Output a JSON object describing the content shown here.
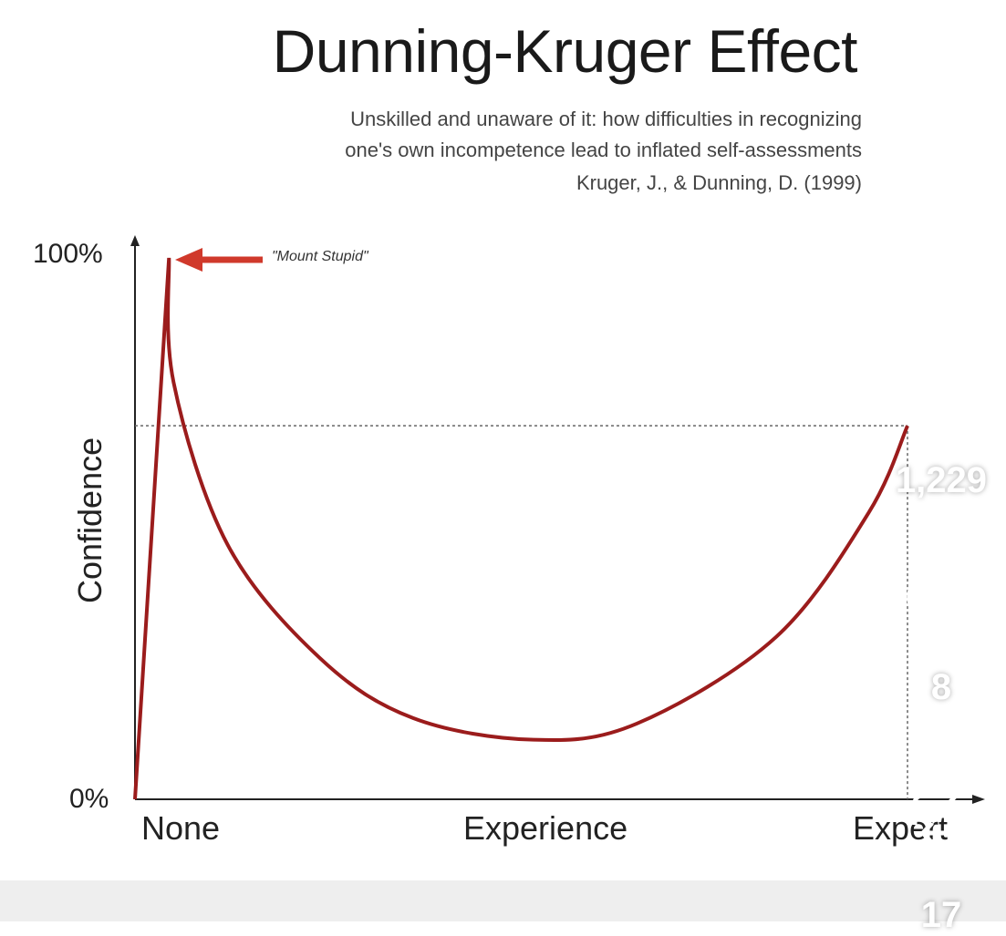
{
  "chart_data": {
    "type": "line",
    "title": "Dunning-Kruger Effect",
    "subtitle": [
      "Unskilled and unaware of it: how difficulties in recognizing",
      "one's own incompetence lead to inflated self-assessments",
      "Kruger, J., & Dunning, D. (1999)"
    ],
    "xlabel": "Experience",
    "ylabel": "Confidence",
    "x_ticks": [
      "None",
      "Expert"
    ],
    "y_ticks": [
      "0%",
      "100%"
    ],
    "xlim": [
      0,
      1
    ],
    "ylim": [
      0,
      1
    ],
    "series": [
      {
        "color": "#9b1c1c",
        "x": [
          0,
          0.044,
          0.05,
          0.12,
          0.24,
          0.36,
          0.516,
          0.65,
          0.83,
          0.95,
          1
        ],
        "y": [
          0,
          1,
          0.77,
          0.47,
          0.26,
          0.15,
          0.11,
          0.14,
          0.3,
          0.53,
          0.69
        ]
      }
    ],
    "reference_lines": {
      "confidence": 0.69,
      "experience": 1
    },
    "annotation": {
      "text": "\"Mount Stupid\"",
      "color": "#d0392b"
    },
    "grid": false
  },
  "social": {
    "likes": "1,229",
    "comments": "8",
    "reposts": "17",
    "icons": [
      "heart-icon",
      "comment-icon",
      "repost-icon"
    ]
  }
}
